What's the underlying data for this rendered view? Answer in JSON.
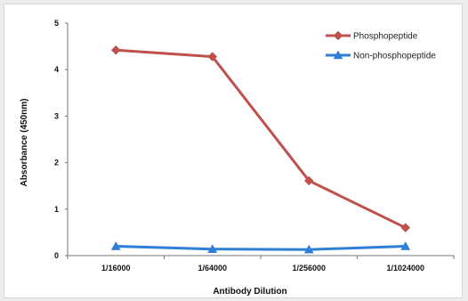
{
  "chart_data": {
    "type": "line",
    "title": "",
    "xlabel": "Antibody Dilution",
    "ylabel": "Absorbance (450nm)",
    "categories": [
      "1/16000",
      "1/64000",
      "1/256000",
      "1/1024000"
    ],
    "ylim": [
      0,
      5
    ],
    "yticks": [
      0,
      1,
      2,
      3,
      4,
      5
    ],
    "grid": false,
    "legend_position": "top-right",
    "series": [
      {
        "name": "Phosphopeptide",
        "values": [
          4.42,
          4.28,
          1.61,
          0.6
        ],
        "color": "#c0504d",
        "marker": "diamond"
      },
      {
        "name": "Non-phosphopeptide",
        "values": [
          0.2,
          0.14,
          0.13,
          0.2
        ],
        "color": "#2e7fd6",
        "marker": "triangle"
      }
    ]
  }
}
